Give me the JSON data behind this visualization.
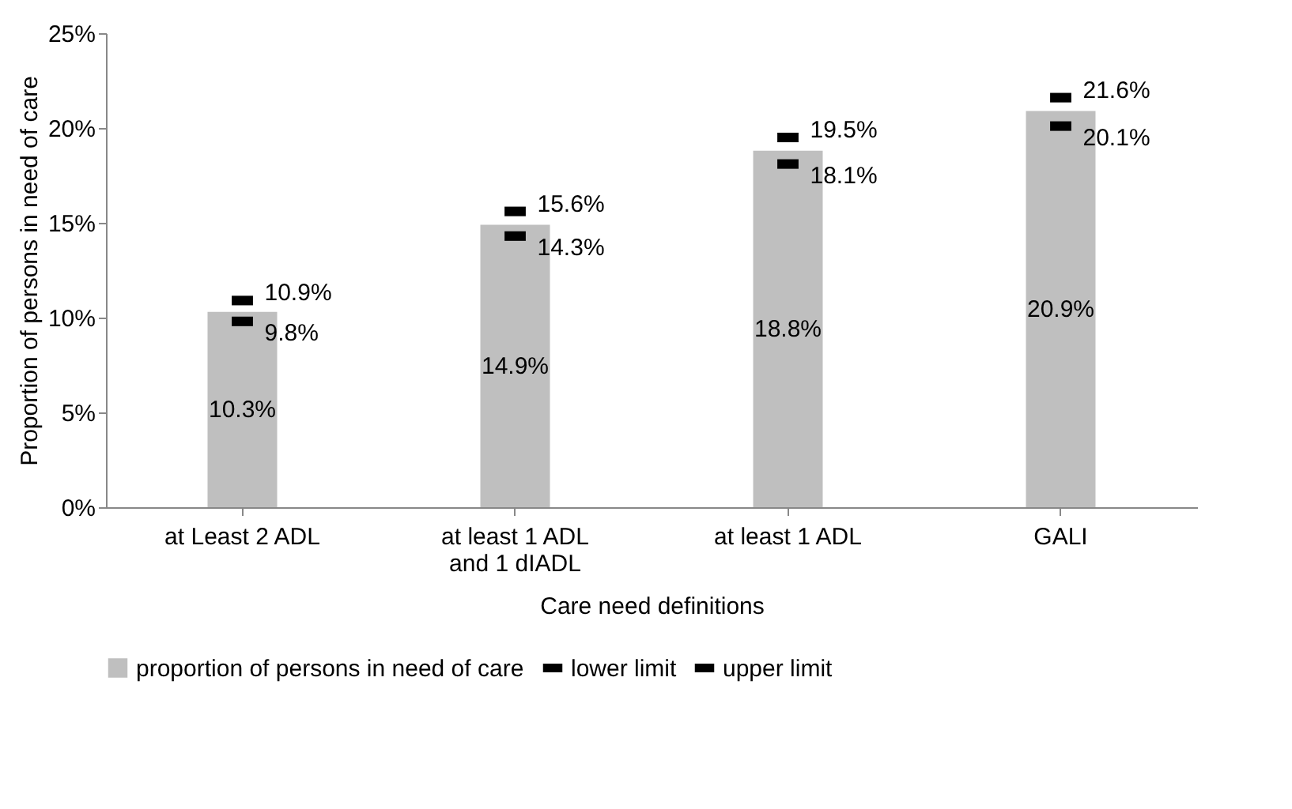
{
  "chart_data": {
    "type": "bar",
    "xlabel": "Care need definitions",
    "ylabel": "Proportion of persons in need of care",
    "categories": [
      "at Least 2 ADL",
      "at least 1 ADL\nand 1 dIADL",
      "at least 1 ADL",
      "GALI"
    ],
    "series": [
      {
        "name": "proportion of persons in need of care",
        "color": "#bfbfbf",
        "values": [
          10.3,
          14.9,
          18.8,
          20.9
        ],
        "value_labels": [
          "10.3%",
          "14.9%",
          "18.8%",
          "20.9%"
        ]
      },
      {
        "name": "lower limit",
        "type": "scatter",
        "color": "#000000",
        "values": [
          9.8,
          14.3,
          18.1,
          20.1
        ],
        "value_labels": [
          "9.8%",
          "14.3%",
          "18.1%",
          "20.1%"
        ]
      },
      {
        "name": "upper limit",
        "type": "scatter",
        "color": "#000000",
        "values": [
          10.9,
          15.6,
          19.5,
          21.6
        ],
        "value_labels": [
          "10.9%",
          "15.6%",
          "19.5%",
          "21.6%"
        ]
      }
    ],
    "ylim": [
      0,
      25
    ],
    "yticks": [
      {
        "value": 0,
        "label": "0%"
      },
      {
        "value": 5,
        "label": "5%"
      },
      {
        "value": 10,
        "label": "10%"
      },
      {
        "value": 15,
        "label": "15%"
      },
      {
        "value": 20,
        "label": "20%"
      },
      {
        "value": 25,
        "label": "25%"
      }
    ],
    "grid": false,
    "legend": "bottom"
  }
}
